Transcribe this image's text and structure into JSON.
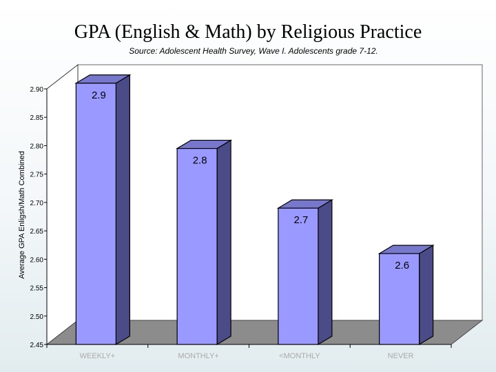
{
  "chart_data": {
    "type": "bar",
    "title": "GPA (English & Math) by Religious Practice",
    "subtitle": "Source: Adolescent Health Survey, Wave I. Adolescents grade 7-12.",
    "ylabel": "Average GPA Enligsh/Math Combined",
    "xlabel": "",
    "categories": [
      "WEEKLY+",
      "MONTHLY+",
      "<MONTHLY",
      "NEVER"
    ],
    "values": [
      2.91,
      2.795,
      2.69,
      2.61
    ],
    "data_labels": [
      "2.9",
      "2.8",
      "2.7",
      "2.6"
    ],
    "ylim": [
      2.45,
      2.9
    ],
    "yticks": [
      "2.45",
      "2.50",
      "2.55",
      "2.60",
      "2.65",
      "2.70",
      "2.75",
      "2.80",
      "2.85",
      "2.90"
    ],
    "grid": false,
    "legend": "none",
    "colors": {
      "bar_front": "#9999ff",
      "bar_side": "#4b4b88",
      "bar_top": "#7777cc",
      "floor": "#8c8c8c",
      "wall": "#ffffff"
    }
  }
}
